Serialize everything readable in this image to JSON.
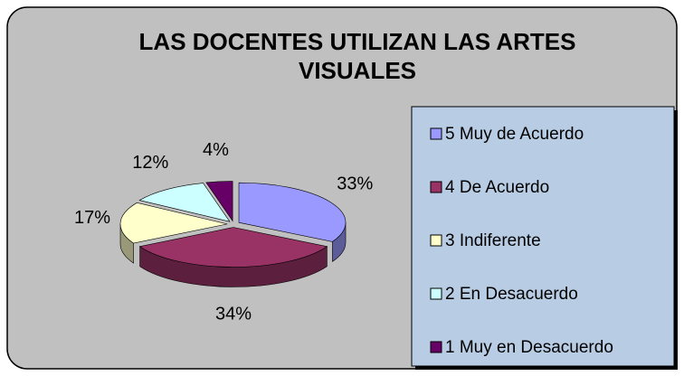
{
  "chart_data": {
    "type": "pie",
    "title": "LAS DOCENTES UTILIZAN LAS ARTES VISUALES",
    "categories": [
      "5 Muy de Acuerdo",
      "4 De Acuerdo",
      "3 Indiferente",
      "2 En Desacuerdo",
      "1 Muy en Desacuerdo"
    ],
    "values": [
      33,
      34,
      17,
      12,
      4
    ],
    "value_labels": [
      "33%",
      "34%",
      "17%",
      "12%",
      "4%"
    ],
    "colors": [
      "#9999ff",
      "#993366",
      "#ffffcc",
      "#ccffff",
      "#660066"
    ],
    "legend": "right"
  }
}
